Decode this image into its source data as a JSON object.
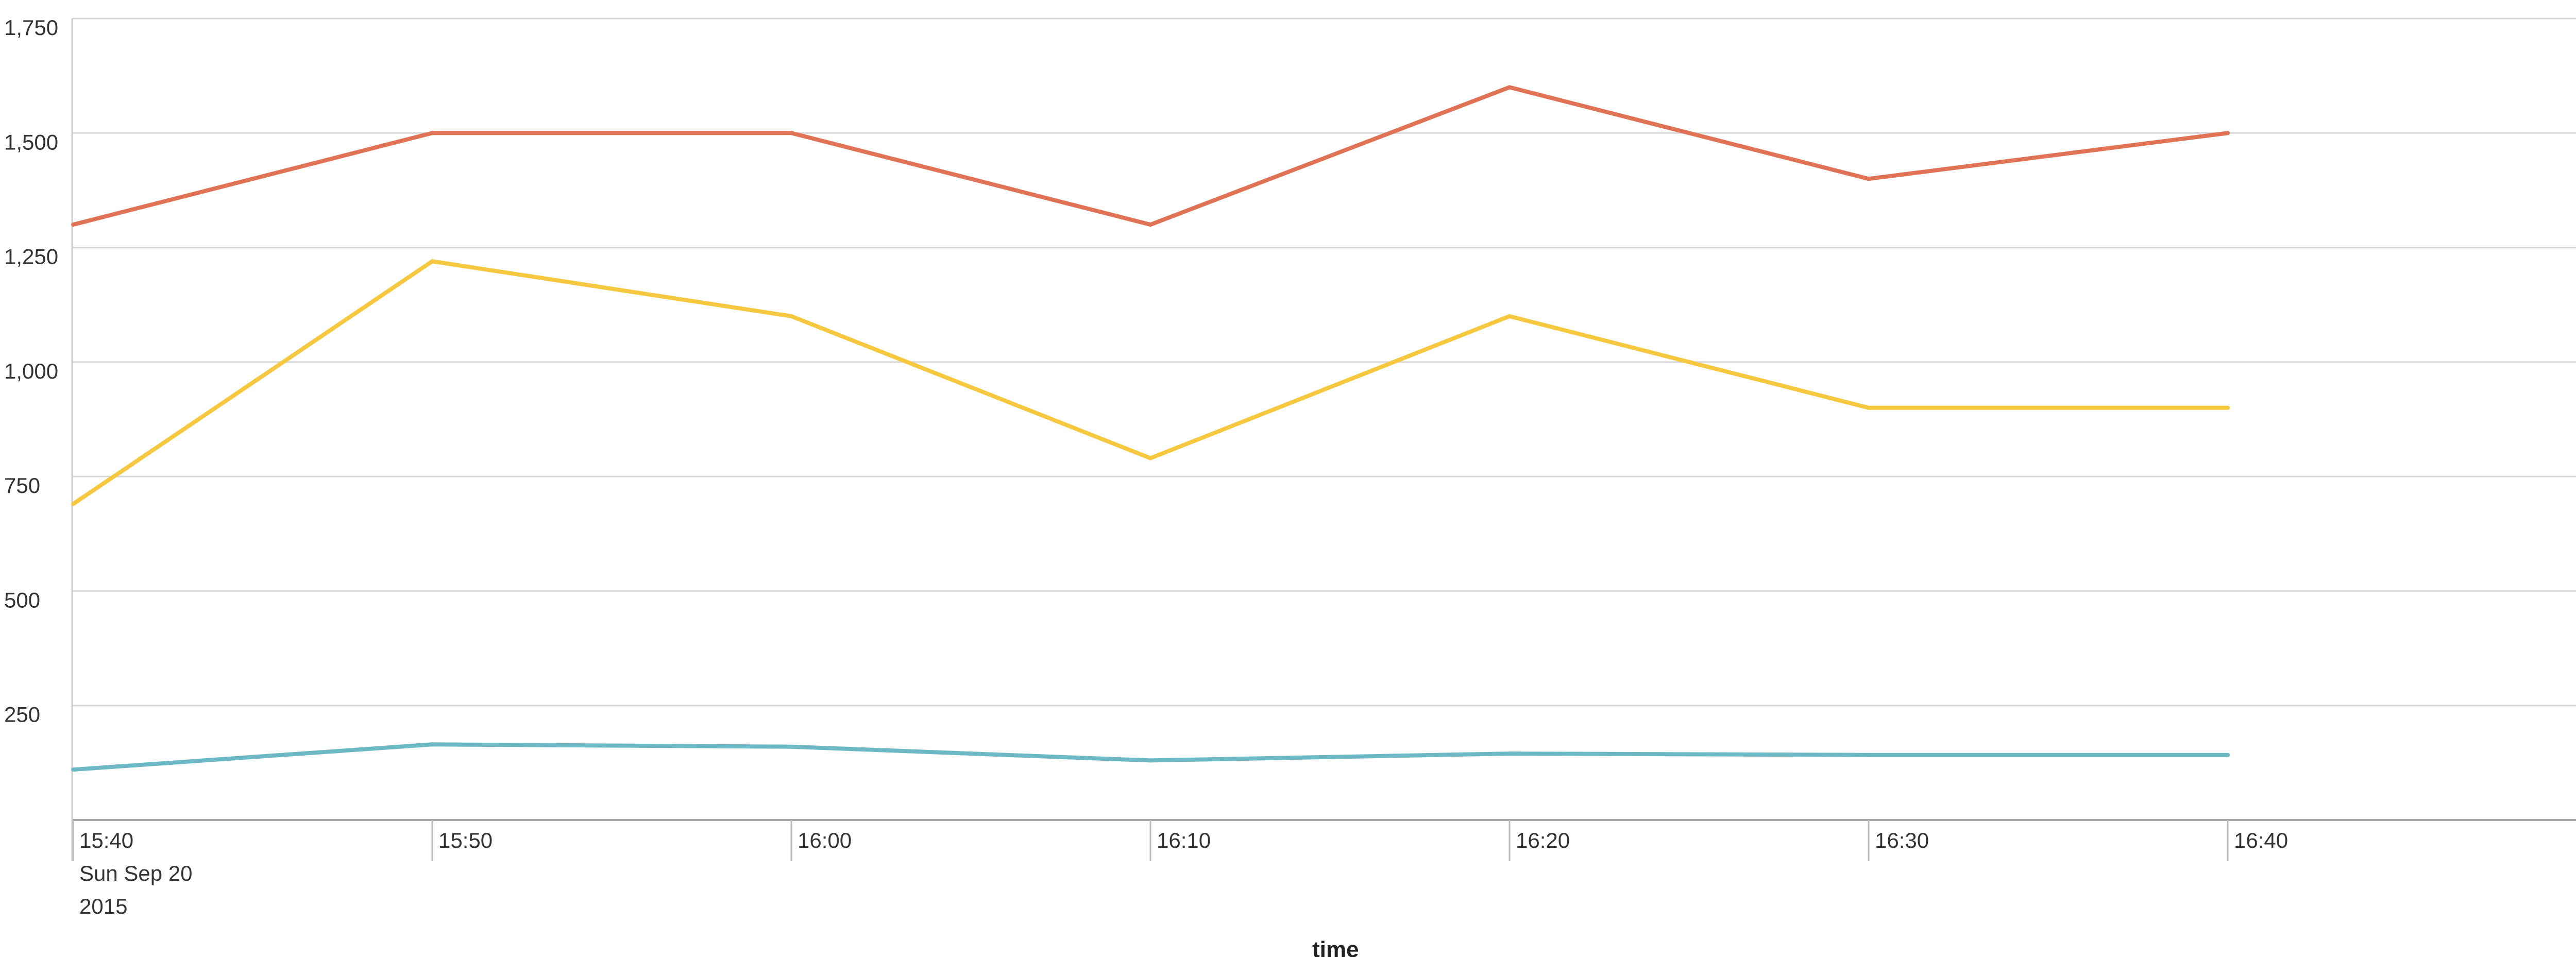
{
  "chart_data": {
    "type": "line",
    "xlabel": "_time",
    "ylabel": "",
    "x": [
      "15:40",
      "15:50",
      "16:00",
      "16:10",
      "16:20",
      "16:30",
      "16:40"
    ],
    "x_date_sub": [
      "Sun Sep 20",
      "2015"
    ],
    "ylim": [
      0,
      1750
    ],
    "yticks": [
      250,
      500,
      750,
      1000,
      1250,
      1500,
      1750
    ],
    "ytick_labels": [
      "250",
      "500",
      "750",
      "1,000",
      "1,250",
      "1,500",
      "1,750"
    ],
    "grid": true,
    "legend": "none",
    "series": [
      {
        "color": "#e07355",
        "values": [
          1300,
          1500,
          1500,
          1300,
          1600,
          1400,
          1500
        ]
      },
      {
        "color": "#f5c840",
        "values": [
          690,
          1220,
          1100,
          790,
          1100,
          900,
          900
        ]
      },
      {
        "color": "#6cb8c4",
        "values": [
          110,
          165,
          160,
          130,
          145,
          142,
          142
        ]
      }
    ]
  }
}
